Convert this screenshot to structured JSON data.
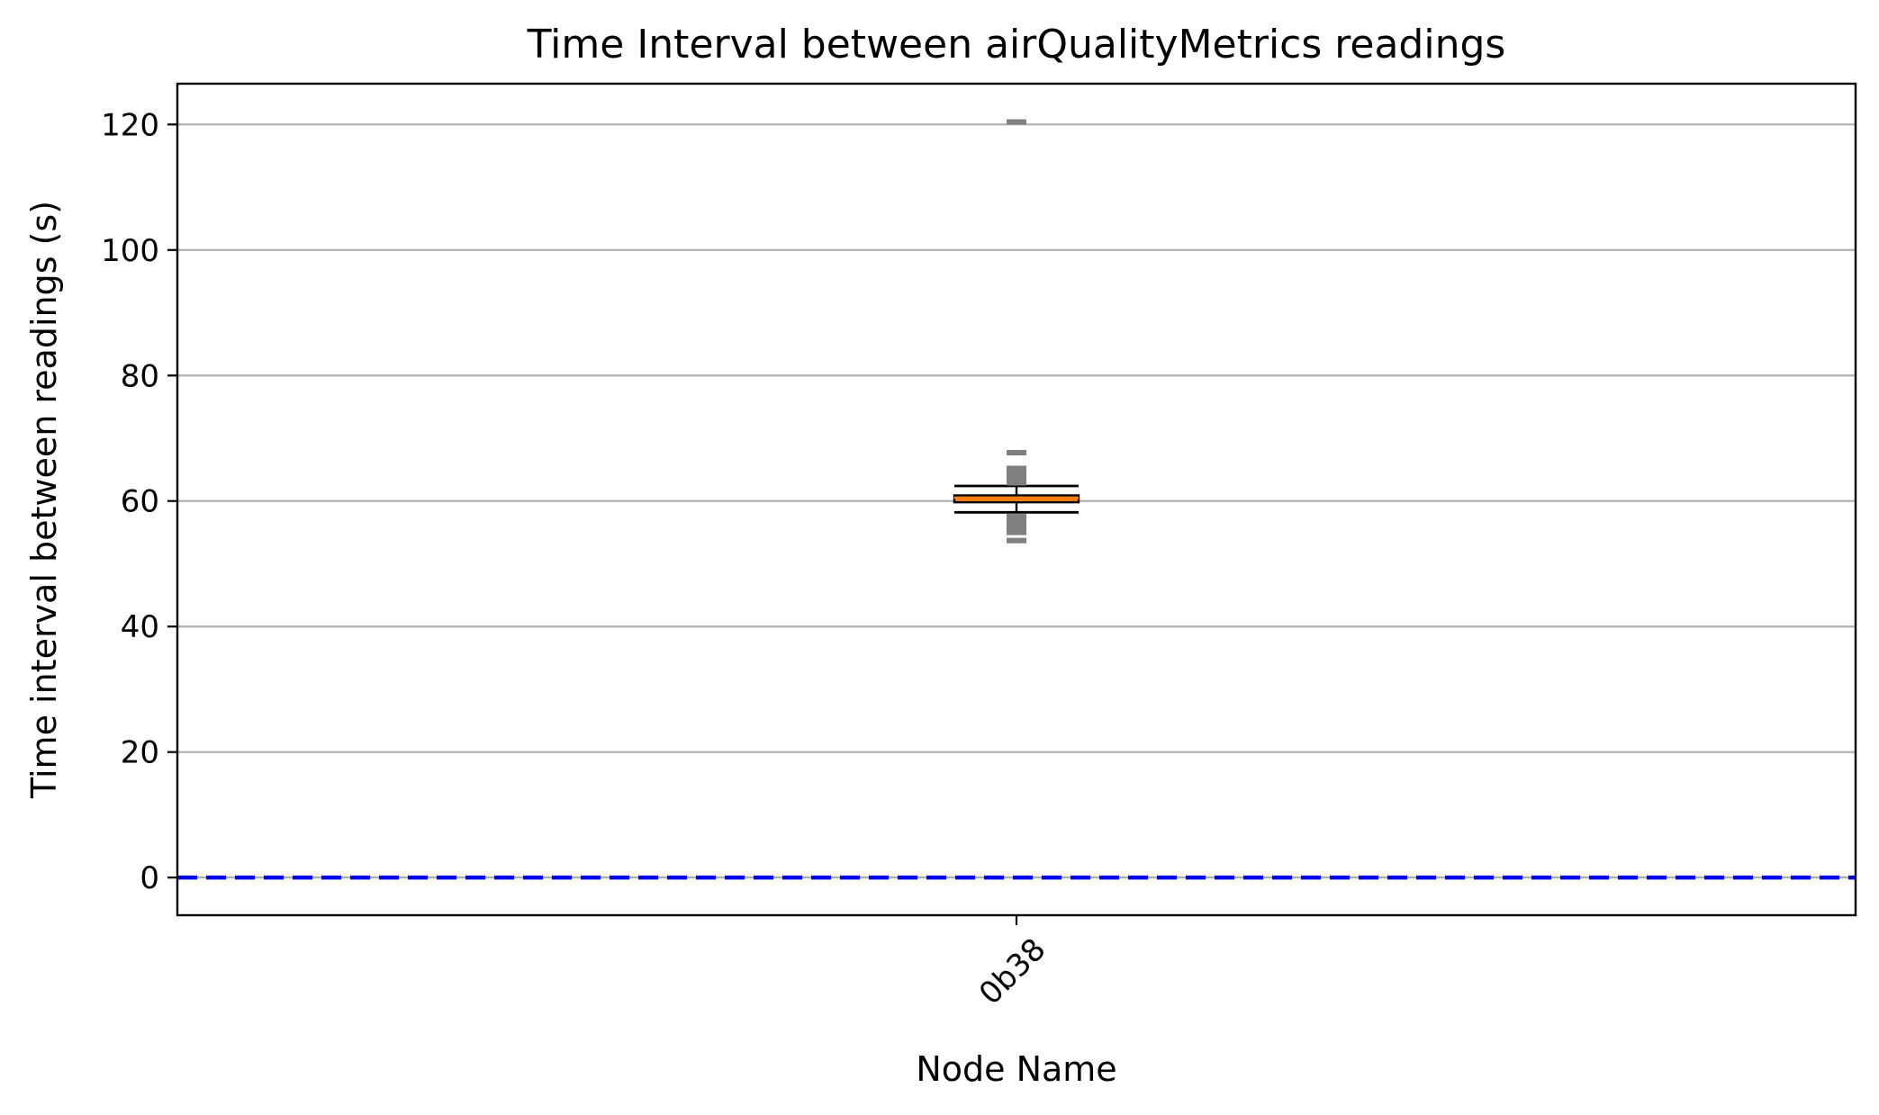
{
  "chart_data": {
    "type": "box",
    "title": "Time Interval between airQualityMetrics readings",
    "xlabel": "Node Name",
    "ylabel": "Time interval between readings (s)",
    "ylim": [
      -6,
      126.5
    ],
    "yticks": [
      0,
      20,
      40,
      60,
      80,
      100,
      120
    ],
    "grid": "y",
    "categories": [
      "0b38"
    ],
    "boxes": [
      {
        "name": "0b38",
        "whisker_low": 58.2,
        "q1": 59.8,
        "median": 60.5,
        "q3": 60.9,
        "whisker_high": 62.4,
        "outliers": [
          53.7,
          55.0,
          55.5,
          56.0,
          56.5,
          57.0,
          57.6,
          62.9,
          63.4,
          64.0,
          64.6,
          65.2,
          67.7,
          120.4
        ]
      }
    ],
    "reference_line": {
      "y": 0,
      "style": "dashed",
      "color": "#0000ff"
    },
    "colors": {
      "median": "#ff7f0e",
      "box_edge": "#000000",
      "outlier": "#808080",
      "grid": "#b0b0b0"
    }
  }
}
